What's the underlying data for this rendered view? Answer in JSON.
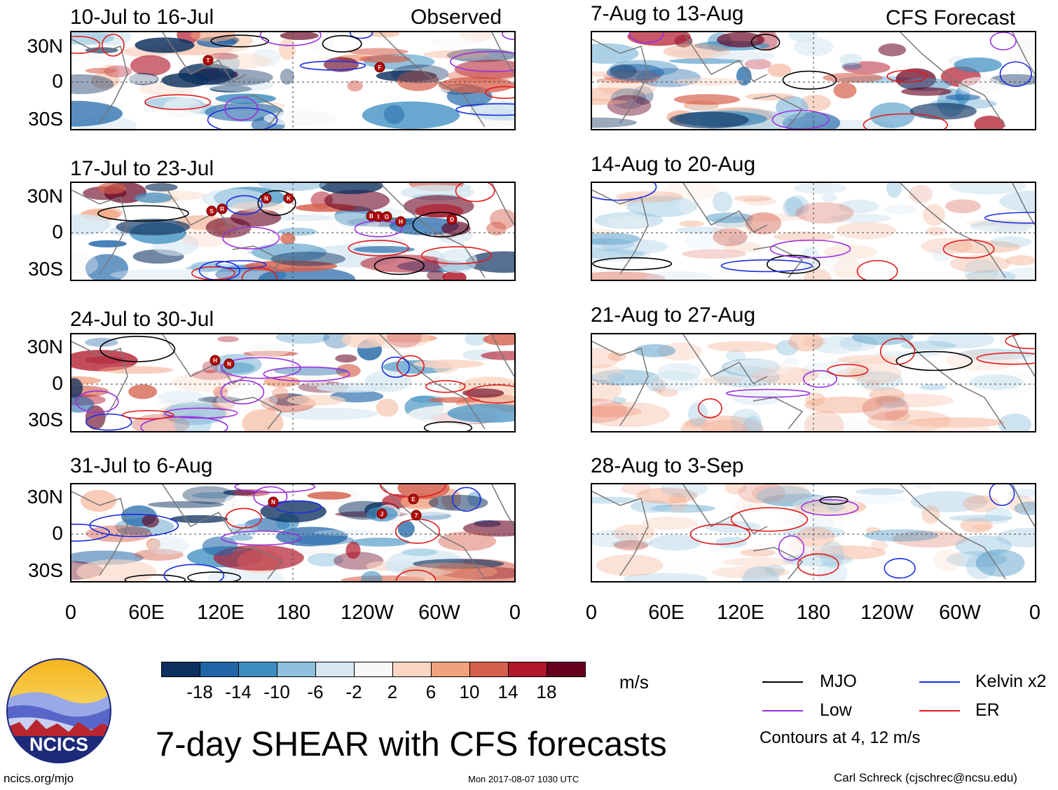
{
  "main_title": "7-day SHEAR with CFS forecasts",
  "observed_label": "Observed",
  "forecast_label": "CFS Forecast",
  "observed_panels": [
    {
      "title": "10-Jul to 16-Jul",
      "storms": [
        "T",
        "F"
      ]
    },
    {
      "title": "17-Jul to 23-Jul",
      "storms": [
        "S",
        "R",
        "N",
        "K",
        "B",
        "I",
        "G",
        "H",
        "D"
      ]
    },
    {
      "title": "24-Jul to 30-Jul",
      "storms": [
        "H",
        "N"
      ]
    },
    {
      "title": "31-Jul to 6-Aug",
      "storms": [
        "N",
        "E",
        "J",
        "7"
      ]
    }
  ],
  "forecast_panels": [
    {
      "title": "7-Aug to 13-Aug"
    },
    {
      "title": "14-Aug to 20-Aug"
    },
    {
      "title": "21-Aug to 27-Aug"
    },
    {
      "title": "28-Aug to 3-Sep"
    }
  ],
  "lat_labels": [
    "30N",
    "0",
    "30S"
  ],
  "lon_labels": [
    "0",
    "60E",
    "120E",
    "180",
    "120W",
    "60W",
    "0"
  ],
  "colorbar": {
    "colors": [
      "#0b2f5e",
      "#1f65a8",
      "#3d8ec1",
      "#8fc1de",
      "#d6e7f2",
      "#f7f7f7",
      "#fbd6c2",
      "#f2a17f",
      "#d6604d",
      "#b2182b",
      "#67001f"
    ],
    "labels": [
      "-18",
      "-14",
      "-10",
      "-6",
      "-2",
      "2",
      "6",
      "10",
      "14",
      "18"
    ],
    "units": "m/s"
  },
  "legend": {
    "items": [
      {
        "label": "MJO",
        "color": "#000000"
      },
      {
        "label": "Kelvin x2",
        "color": "#1a2ee0"
      },
      {
        "label": "Low",
        "color": "#9b30e0"
      },
      {
        "label": "ER",
        "color": "#e01a1a"
      }
    ],
    "contours_note": "Contours at 4, 12 m/s"
  },
  "logo_text": "NCICS",
  "footer": {
    "url": "ncics.org/mjo",
    "timestamp": "Mon 2017-08-07 1030 UTC",
    "credit": "Carl Schreck (cjschrec@ncsu.edu)"
  }
}
